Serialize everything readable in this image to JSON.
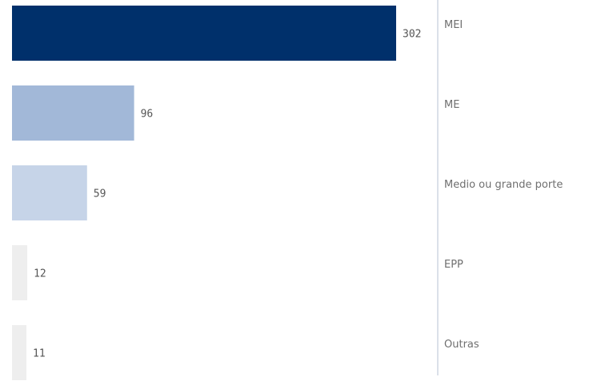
{
  "chart_data": {
    "type": "bar",
    "orientation": "horizontal",
    "categories": [
      "MEI",
      "ME",
      "Medio ou grande porte",
      "EPP",
      "Outras"
    ],
    "values": [
      302,
      96,
      59,
      12,
      11
    ],
    "colors": [
      "#00306b",
      "#a2b8d8",
      "#c6d4e8",
      "#eeeeee",
      "#eeeeee"
    ],
    "xlim": [
      0,
      302
    ],
    "title": "",
    "xlabel": "",
    "ylabel": "",
    "grid": false,
    "legend": "none",
    "category_axis": "right"
  }
}
